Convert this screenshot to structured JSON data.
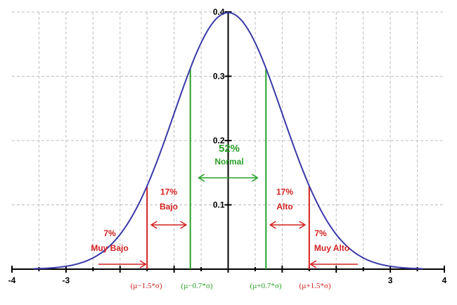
{
  "chart_data": {
    "type": "line",
    "title": "",
    "xlabel": "",
    "ylabel": "",
    "xlim": [
      -4,
      4
    ],
    "ylim": [
      0,
      0.4
    ],
    "grid": true,
    "x_ticks": [
      "-4",
      "-3",
      "3",
      "4"
    ],
    "y_ticks": [
      "0.1",
      "0.2",
      "0.3",
      "0.4"
    ],
    "curve": {
      "distribution": "standard normal density",
      "mean": 0,
      "sd": 1,
      "x_from": -3.6,
      "x_to": 3.6,
      "color": "#3a3aa8"
    },
    "cutoffs": [
      {
        "x": -1.5,
        "label": "(µ−1.5*σ)",
        "color": "#d42020"
      },
      {
        "x": -0.7,
        "label": "(µ−0.7*σ)",
        "color": "#2aa02a"
      },
      {
        "x": 0.7,
        "label": "(µ+0.7*σ)",
        "color": "#2aa02a"
      },
      {
        "x": 1.5,
        "label": "(µ+1.5*σ)",
        "color": "#d42020"
      }
    ],
    "regions": [
      {
        "percent": "7%",
        "label": "Muy Bajo",
        "color": "#d42020"
      },
      {
        "percent": "17%",
        "label": "Bajo",
        "color": "#d42020"
      },
      {
        "percent": "52%",
        "label": "Normal",
        "color": "#2aa02a"
      },
      {
        "percent": "17%",
        "label": "Alto",
        "color": "#d42020"
      },
      {
        "percent": "7%",
        "label": "Muy Alto",
        "color": "#d42020"
      }
    ]
  }
}
